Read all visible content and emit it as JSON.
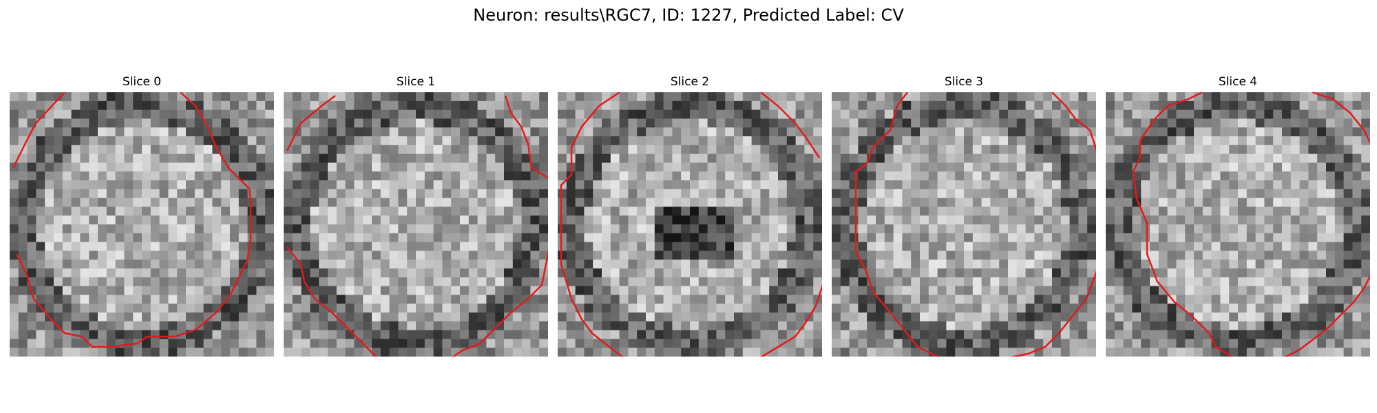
{
  "figure": {
    "title": "Neuron: results\\RGC7, ID: 1227, Predicted Label: CV"
  },
  "colors": {
    "contour": "#e31a1c",
    "background": "#ffffff"
  },
  "slices": [
    {
      "title": "Slice 0",
      "image": "grayscale-noise-slice"
    },
    {
      "title": "Slice 1",
      "image": "grayscale-noise-slice"
    },
    {
      "title": "Slice 2",
      "image": "grayscale-noise-slice"
    },
    {
      "title": "Slice 3",
      "image": "grayscale-noise-slice"
    },
    {
      "title": "Slice 4",
      "image": "grayscale-noise-slice"
    }
  ]
}
